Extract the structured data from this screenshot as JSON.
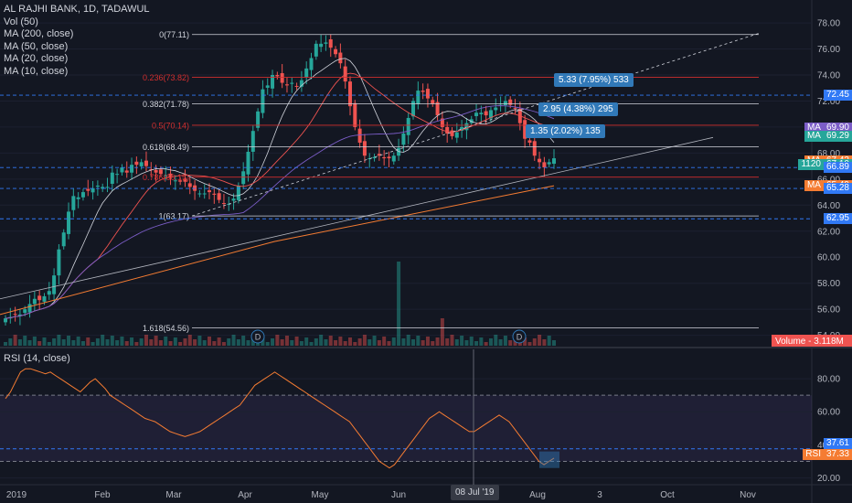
{
  "legend": {
    "symbol": "AL RAJHI BANK, 1D, TADAWUL",
    "vol": "Vol (50)",
    "ma200": "MA (200, close)",
    "ma50": "MA (50, close)",
    "ma20": "MA (20, close)",
    "ma10": "MA (10, close)",
    "rsi": "RSI (14, close)"
  },
  "colors": {
    "background": "#131722",
    "up": "#26a69a",
    "down": "#ef5350",
    "ma200": "#f57c32",
    "ma50": "#7b5dc7",
    "ma20": "#ef5350",
    "rsi": "#f57c32",
    "fib": "#d1d4dc",
    "fib_red": "#d32f2f",
    "dashed_level": "#3179f5"
  },
  "chart_data": [
    {
      "type": "candlestick",
      "y_axis": {
        "ticks": [
          54,
          56,
          58,
          60,
          62,
          64,
          66,
          68,
          70,
          72,
          74,
          76,
          78
        ],
        "labels": [
          "54.00",
          "56.00",
          "58.00",
          "60.00",
          "62.00",
          "64.00",
          "66.00",
          "68.00",
          "70.00",
          "72.00",
          "74.00",
          "76.00",
          "78.00"
        ],
        "range": [
          53.2,
          79.2
        ]
      },
      "x_axis": {
        "labels": [
          "2019",
          "Feb",
          "Mar",
          "Apr",
          "May",
          "Jun",
          "Jul",
          "Aug",
          "3",
          "Oct",
          "Nov"
        ]
      },
      "series_close": [
        55.3,
        55.4,
        55.6,
        55.6,
        56.0,
        56.4,
        56.8,
        56.7,
        57.0,
        57.4,
        58.6,
        60.6,
        61.9,
        63.5,
        64.7,
        64.6,
        65.0,
        65.1,
        65.3,
        65.5,
        65.4,
        65.4,
        66.5,
        66.4,
        66.9,
        66.5,
        67.1,
        67.1,
        67.3,
        67.0,
        66.7,
        66.5,
        66.4,
        66.3,
        66.1,
        65.9,
        65.8,
        65.8,
        65.4,
        65.1,
        64.9,
        64.9,
        65.0,
        64.8,
        64.4,
        64.1,
        64.1,
        64.5,
        65.5,
        66.6,
        68.1,
        69.7,
        71.2,
        72.9,
        73.2,
        74.0,
        73.9,
        73.4,
        73.2,
        73.4,
        73.1,
        73.6,
        74.5,
        75.3,
        76.4,
        76.4,
        76.5,
        76.1,
        75.6,
        74.9,
        73.5,
        71.6,
        70.0,
        68.8,
        67.8,
        67.6,
        67.7,
        67.8,
        67.6,
        67.6,
        67.8,
        68.4,
        69.5,
        70.7,
        72.0,
        72.8,
        72.7,
        72.2,
        71.8,
        70.9,
        70.0,
        69.5,
        69.3,
        69.6,
        70.0,
        70.3,
        70.6,
        71.1,
        71.1,
        70.9,
        71.3,
        71.5,
        71.8,
        72.0,
        71.7,
        71.4,
        70.3,
        69.1,
        68.8,
        67.8,
        67.3,
        66.9,
        67.3,
        67.6
      ],
      "volume_spikes": [
        {
          "date": "late May",
          "approx": "high"
        },
        {
          "date": "early Jun",
          "approx": "medium"
        }
      ],
      "moving_averages_last": {
        "ma200": 65.49,
        "ma50": 69.9,
        "ma20": 69.29,
        "ma10": 67.42
      },
      "fibonacci": [
        {
          "label": "0(77.11)",
          "value": 77.11
        },
        {
          "label": "0.236(73.82)",
          "value": 73.82
        },
        {
          "label": "0.382(71.78)",
          "value": 71.78
        },
        {
          "label": "0.5(70.14)",
          "value": 70.14
        },
        {
          "label": "0.618(68.49)",
          "value": 68.49
        },
        {
          "label": "0.786(66.15)",
          "value": 66.15
        },
        {
          "label": "1(63.17)",
          "value": 63.17
        },
        {
          "label": "1.618(54.56)",
          "value": 54.56
        }
      ],
      "dashed_levels": [
        72.45,
        66.89,
        65.28,
        62.95
      ],
      "price_labels": [
        {
          "label": "MA",
          "value": "69.90",
          "color": "#7b5dc7"
        },
        {
          "label": "MA",
          "value": "69.29",
          "color": "#26a69a"
        },
        {
          "label": "MA",
          "value": "67.42",
          "color": "#f57c32"
        },
        {
          "label": "1120",
          "value": "67.10",
          "color": "#26a69a"
        },
        {
          "label": "",
          "value": "66.89",
          "color": "#3179f5"
        },
        {
          "label": "MA",
          "value": "65.49",
          "color": "#f57c32"
        },
        {
          "label": "",
          "value": "65.28",
          "color": "#3179f5"
        },
        {
          "label": "",
          "value": "62.95",
          "color": "#3179f5"
        },
        {
          "label": "",
          "value": "72.45",
          "color": "#3179f5"
        }
      ],
      "measurements": [
        "5.33 (7.95%) 533",
        "2.95 (4.38%) 295",
        "1.35 (2.02%) 135"
      ],
      "volume_label": "Volume - 3.118M",
      "event_markers": [
        "D",
        "D"
      ]
    },
    {
      "type": "line",
      "name": "RSI (14, close)",
      "y_axis": {
        "ticks": [
          20,
          40,
          60,
          80
        ],
        "labels": [
          "20.00",
          "40.00",
          "60.00",
          "80.00"
        ],
        "range": [
          17,
          90
        ]
      },
      "band": [
        30,
        70
      ],
      "values": [
        68,
        72,
        78,
        84,
        86,
        86,
        85,
        84,
        83,
        84,
        82,
        80,
        78,
        76,
        74,
        72,
        75,
        78,
        80,
        77,
        74,
        70,
        68,
        66,
        64,
        62,
        60,
        58,
        56,
        55,
        54,
        52,
        50,
        48,
        47,
        46,
        45,
        46,
        47,
        48,
        50,
        52,
        54,
        56,
        58,
        60,
        62,
        64,
        68,
        72,
        76,
        78,
        80,
        82,
        84,
        82,
        80,
        78,
        76,
        74,
        72,
        70,
        68,
        66,
        64,
        62,
        60,
        58,
        56,
        54,
        50,
        46,
        42,
        38,
        34,
        30,
        28,
        26,
        28,
        32,
        36,
        40,
        44,
        48,
        52,
        56,
        58,
        60,
        58,
        56,
        54,
        52,
        50,
        48,
        48,
        50,
        52,
        54,
        56,
        58,
        56,
        54,
        50,
        46,
        42,
        38,
        34,
        30,
        28,
        30,
        32
      ],
      "last_labels": [
        {
          "label": "",
          "value": "37.61"
        },
        {
          "label": "RSI",
          "value": "37.33"
        }
      ],
      "crosshair_date": "08 Jul '19"
    }
  ]
}
